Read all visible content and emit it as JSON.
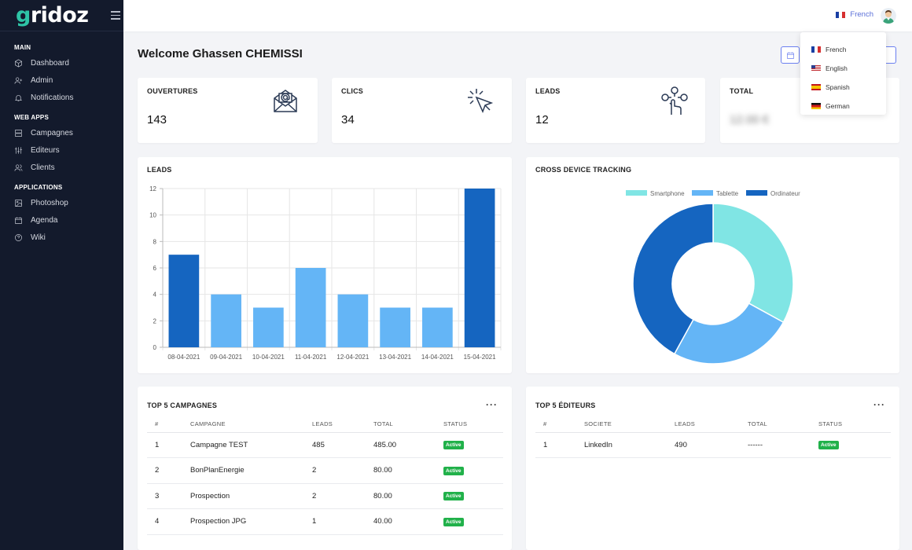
{
  "brand": {
    "logo_g": "g",
    "logo_rest": "ridoz"
  },
  "sidebar": {
    "sections": [
      {
        "title": "MAIN",
        "items": [
          {
            "label": "Dashboard",
            "icon": "cube-icon"
          },
          {
            "label": "Admin",
            "icon": "user-plus-icon"
          },
          {
            "label": "Notifications",
            "icon": "bell-icon"
          }
        ]
      },
      {
        "title": "WEB APPS",
        "items": [
          {
            "label": "Campagnes",
            "icon": "server-icon"
          },
          {
            "label": "Editeurs",
            "icon": "sliders-icon"
          },
          {
            "label": "Clients",
            "icon": "users-icon"
          }
        ]
      },
      {
        "title": "APPLICATIONS",
        "items": [
          {
            "label": "Photoshop",
            "icon": "image-icon"
          },
          {
            "label": "Agenda",
            "icon": "calendar-icon"
          },
          {
            "label": "Wiki",
            "icon": "help-circle-icon"
          }
        ]
      }
    ]
  },
  "topbar": {
    "language": "French"
  },
  "languages": [
    "French",
    "English",
    "Spanish",
    "German"
  ],
  "welcome": "Welcome Ghassen CHEMISSI",
  "stats": {
    "ouvertures": {
      "label": "OUVERTURES",
      "value": "143",
      "icon": "envelope-open-icon"
    },
    "clics": {
      "label": "CLICS",
      "value": "34",
      "icon": "cursor-click-icon"
    },
    "leads": {
      "label": "LEADS",
      "value": "12",
      "icon": "hand-network-icon"
    },
    "total": {
      "label": "TOTAL",
      "value": "12.00 €"
    }
  },
  "leads_chart": {
    "title": "LEADS"
  },
  "device_chart": {
    "title": "CROSS DEVICE TRACKING"
  },
  "chart_data": [
    {
      "type": "bar",
      "title": "LEADS",
      "categories": [
        "08-04-2021",
        "09-04-2021",
        "10-04-2021",
        "11-04-2021",
        "12-04-2021",
        "13-04-2021",
        "14-04-2021",
        "15-04-2021"
      ],
      "values": [
        7,
        4,
        3,
        6,
        4,
        3,
        3,
        12
      ],
      "colors": [
        "#1565c0",
        "#64b5f6",
        "#64b5f6",
        "#64b5f6",
        "#64b5f6",
        "#64b5f6",
        "#64b5f6",
        "#1565c0"
      ],
      "ylim": [
        0,
        12
      ],
      "yticks": [
        0,
        2,
        4,
        6,
        8,
        10,
        12
      ],
      "grid": true
    },
    {
      "type": "pie",
      "title": "CROSS DEVICE TRACKING",
      "labels": [
        "Smartphone",
        "Tablette",
        "Ordinateur"
      ],
      "values": [
        33,
        25,
        42
      ],
      "colors": [
        "#80e5e4",
        "#64b5f6",
        "#1565c0"
      ],
      "legend": "top",
      "donut": true
    }
  ],
  "campagnes": {
    "title": "TOP 5 CAMPAGNES",
    "more": "···",
    "headers": [
      "#",
      "CAMPAGNE",
      "LEADS",
      "TOTAL",
      "STATUS"
    ],
    "rows": [
      {
        "n": "1",
        "name": "Campagne TEST",
        "leads": "485",
        "total": "485.00",
        "status": "Active"
      },
      {
        "n": "2",
        "name": "BonPlanEnergie",
        "leads": "2",
        "total": "80.00",
        "status": "Active"
      },
      {
        "n": "3",
        "name": "Prospection",
        "leads": "2",
        "total": "80.00",
        "status": "Active"
      },
      {
        "n": "4",
        "name": "Prospection JPG",
        "leads": "1",
        "total": "40.00",
        "status": "Active"
      }
    ]
  },
  "editeurs": {
    "title": "TOP 5 ÉDITEURS",
    "more": "···",
    "headers": [
      "#",
      "SOCIETE",
      "LEADS",
      "TOTAL",
      "STATUS"
    ],
    "rows": [
      {
        "n": "1",
        "name": "LinkedIn",
        "leads": "490",
        "total": "------",
        "status": "Active"
      }
    ]
  }
}
